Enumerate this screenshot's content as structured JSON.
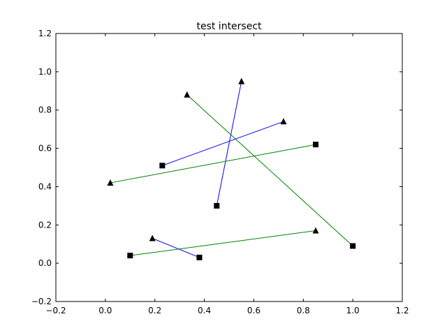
{
  "chart_data": {
    "type": "line",
    "title": "test intersect",
    "xlabel": "",
    "ylabel": "",
    "xlim": [
      -0.2,
      1.2
    ],
    "ylim": [
      -0.2,
      1.2
    ],
    "xticks": [
      "−0.2",
      "0.0",
      "0.2",
      "0.4",
      "0.6",
      "0.8",
      "1.0",
      "1.2"
    ],
    "xtick_values": [
      -0.2,
      0.0,
      0.2,
      0.4,
      0.6,
      0.8,
      1.0,
      1.2
    ],
    "yticks": [
      "−0.2",
      "0.0",
      "0.2",
      "0.4",
      "0.6",
      "0.8",
      "1.0",
      "1.2"
    ],
    "ytick_values": [
      -0.2,
      0.0,
      0.2,
      0.4,
      0.6,
      0.8,
      1.0,
      1.2
    ],
    "grid": false,
    "colors": {
      "blue": "#0000ff",
      "green": "#008000",
      "marker": "#000000"
    },
    "segments": [
      {
        "color": "blue",
        "start": {
          "x": 0.45,
          "y": 0.3,
          "marker": "square"
        },
        "end": {
          "x": 0.55,
          "y": 0.95,
          "marker": "triangle"
        }
      },
      {
        "color": "blue",
        "start": {
          "x": 0.23,
          "y": 0.51,
          "marker": "square"
        },
        "end": {
          "x": 0.72,
          "y": 0.74,
          "marker": "triangle"
        }
      },
      {
        "color": "green",
        "start": {
          "x": 0.02,
          "y": 0.42,
          "marker": "triangle"
        },
        "end": {
          "x": 0.85,
          "y": 0.62,
          "marker": "square"
        }
      },
      {
        "color": "green",
        "start": {
          "x": 0.33,
          "y": 0.88,
          "marker": "triangle"
        },
        "end": {
          "x": 1.0,
          "y": 0.09,
          "marker": "square"
        }
      },
      {
        "color": "blue",
        "start": {
          "x": 0.19,
          "y": 0.13,
          "marker": "triangle"
        },
        "end": {
          "x": 0.38,
          "y": 0.03,
          "marker": "square"
        }
      },
      {
        "color": "green",
        "start": {
          "x": 0.1,
          "y": 0.04,
          "marker": "square"
        },
        "end": {
          "x": 0.85,
          "y": 0.17,
          "marker": "triangle"
        }
      }
    ]
  }
}
